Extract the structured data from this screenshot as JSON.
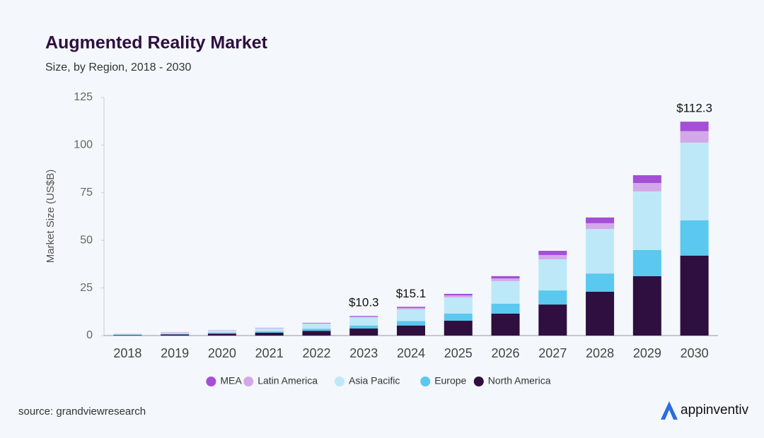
{
  "chart_data": {
    "type": "stacked-bar",
    "title": "Augmented Reality Market",
    "subtitle": "Size, by Region, 2018 - 2030",
    "y_label": "Market Size (US$B)",
    "categories": [
      "2018",
      "2019",
      "2020",
      "2021",
      "2022",
      "2023",
      "2024",
      "2025",
      "2026",
      "2027",
      "2028",
      "2029",
      "2030"
    ],
    "series": [
      {
        "name": "North America",
        "color": "#2e0f3f",
        "values": [
          0.3,
          0.6,
          1.0,
          1.5,
          2.5,
          3.7,
          5.3,
          7.8,
          11.5,
          16.3,
          23,
          31.2,
          42
        ]
      },
      {
        "name": "Europe",
        "color": "#5ac8ef",
        "values": [
          0.2,
          0.3,
          0.5,
          0.7,
          1.1,
          1.6,
          2.3,
          3.7,
          5.2,
          7.4,
          9.6,
          13.7,
          18.5
        ]
      },
      {
        "name": "Asia Pacific",
        "color": "#bde8f8",
        "values": [
          0.3,
          0.6,
          1.0,
          1.6,
          2.6,
          4.2,
          6.2,
          8.5,
          11.9,
          16.3,
          23.4,
          30.8,
          40.8
        ]
      },
      {
        "name": "Latin America",
        "color": "#d3a8e8",
        "values": [
          0.05,
          0.1,
          0.1,
          0.2,
          0.3,
          0.4,
          0.7,
          1.1,
          1.4,
          2.3,
          3,
          4.4,
          6
        ]
      },
      {
        "name": "MEA",
        "color": "#a44fd6",
        "values": [
          0.05,
          0.1,
          0.1,
          0.1,
          0.2,
          0.4,
          0.6,
          0.8,
          1.2,
          2.2,
          3,
          4.1,
          5
        ]
      }
    ],
    "totals": [
      null,
      null,
      null,
      null,
      null,
      10.3,
      15.1,
      null,
      null,
      null,
      null,
      null,
      112.3
    ],
    "total_labels": [
      null,
      null,
      null,
      null,
      null,
      "$10.3",
      "$15.1",
      null,
      null,
      null,
      null,
      null,
      "$112.3"
    ],
    "ylim": [
      0,
      125
    ],
    "yticks": [
      0,
      25,
      50,
      75,
      100,
      125
    ],
    "grid": false,
    "legend": "bottom"
  },
  "footer": {
    "source": "source: grandviewresearch",
    "brand": "appinventiv"
  }
}
